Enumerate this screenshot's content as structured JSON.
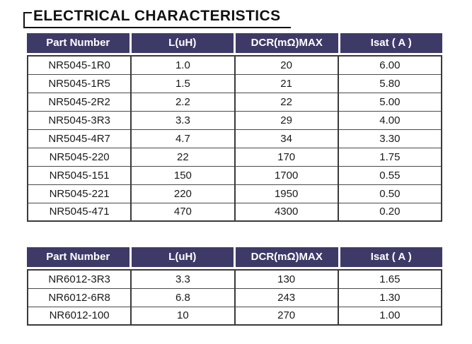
{
  "page": {
    "title": "ELECTRICAL CHARACTERISTICS"
  },
  "colors": {
    "header_bg": "#3E3A68",
    "header_text": "#FFFFFF",
    "body_border": "#3A3A3A",
    "title_color": "#111111",
    "row_text": "#1A1A1A",
    "page_bg": "#FFFFFF"
  },
  "tables": [
    {
      "headers": [
        "Part Number",
        "L(uH)",
        "DCR(mΩ)MAX",
        "Isat ( A )"
      ],
      "rows": [
        [
          "NR5045-1R0",
          "1.0",
          "20",
          "6.00"
        ],
        [
          "NR5045-1R5",
          "1.5",
          "21",
          "5.80"
        ],
        [
          "NR5045-2R2",
          "2.2",
          "22",
          "5.00"
        ],
        [
          "NR5045-3R3",
          "3.3",
          "29",
          "4.00"
        ],
        [
          "NR5045-4R7",
          "4.7",
          "34",
          "3.30"
        ],
        [
          "NR5045-220",
          "22",
          "170",
          "1.75"
        ],
        [
          "NR5045-151",
          "150",
          "1700",
          "0.55"
        ],
        [
          "NR5045-221",
          "220",
          "1950",
          "0.50"
        ],
        [
          "NR5045-471",
          "470",
          "4300",
          "0.20"
        ]
      ]
    },
    {
      "headers": [
        "Part Number",
        "L(uH)",
        "DCR(mΩ)MAX",
        "Isat ( A )"
      ],
      "rows": [
        [
          "NR6012-3R3",
          "3.3",
          "130",
          "1.65"
        ],
        [
          "NR6012-6R8",
          "6.8",
          "243",
          "1.30"
        ],
        [
          "NR6012-100",
          "10",
          "270",
          "1.00"
        ]
      ]
    }
  ]
}
